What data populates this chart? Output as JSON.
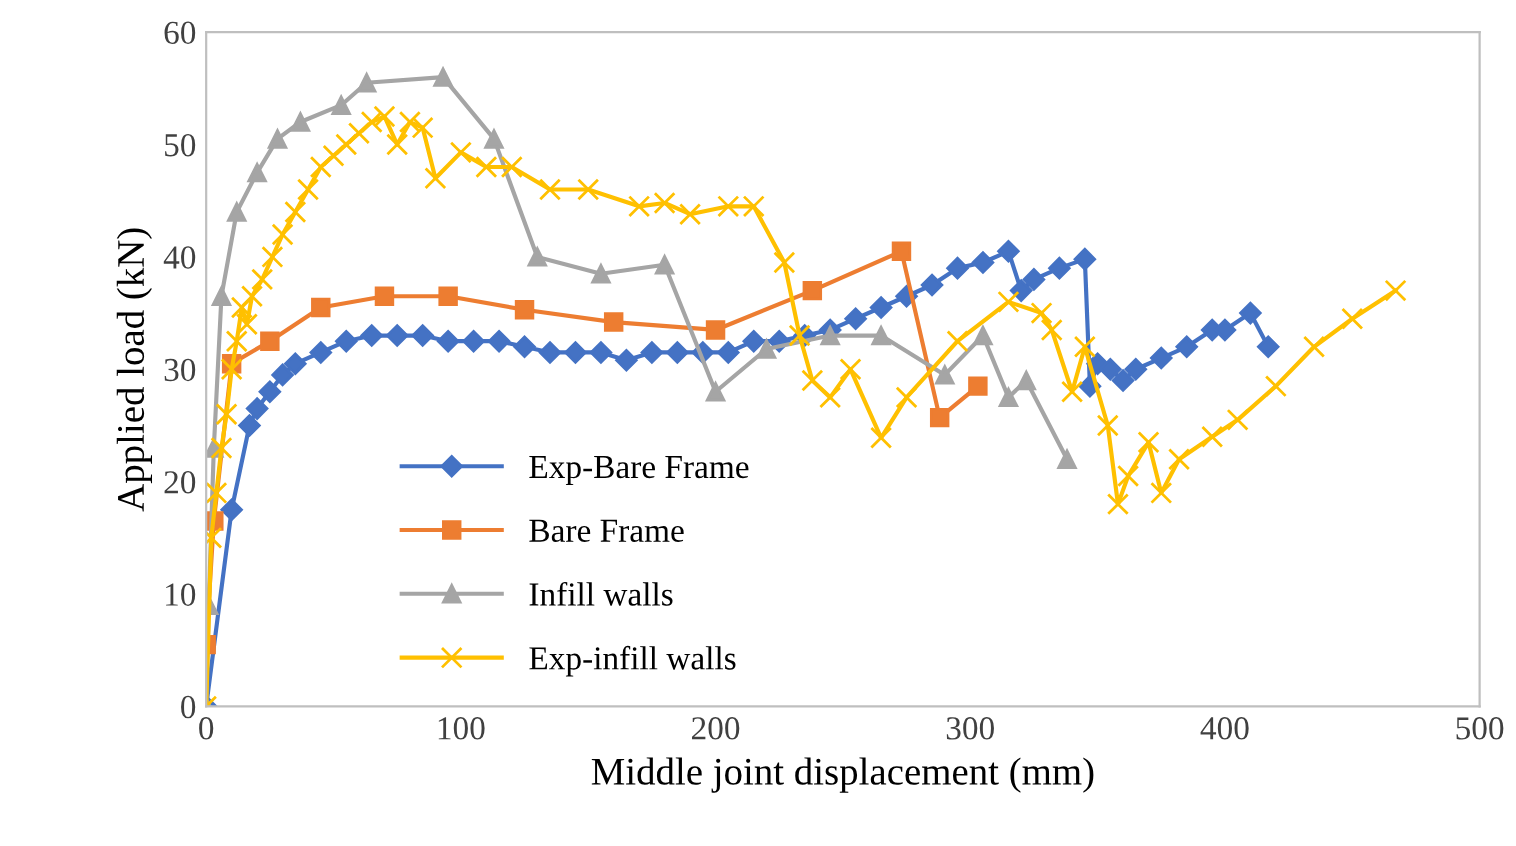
{
  "chart_data": {
    "type": "line",
    "xlabel": "Middle joint displacement (mm)",
    "ylabel": "Applied load (kN)",
    "xlim": [
      0,
      500
    ],
    "ylim": [
      0,
      60
    ],
    "xticks": [
      0,
      100,
      200,
      300,
      400,
      500
    ],
    "yticks": [
      0,
      10,
      20,
      30,
      40,
      50,
      60
    ],
    "grid": false,
    "legend": "bottom left",
    "series": [
      {
        "name": "Exp-Bare Frame",
        "color": "#4472c4",
        "marker": "diamond",
        "x": [
          0,
          10,
          17,
          20,
          25,
          30,
          35,
          45,
          55,
          65,
          75,
          85,
          95,
          105,
          115,
          125,
          135,
          145,
          155,
          165,
          175,
          185,
          195,
          205,
          215,
          225,
          235,
          245,
          255,
          265,
          275,
          285,
          295,
          305,
          315,
          320,
          325,
          335,
          345,
          347,
          350,
          355,
          360,
          365,
          375,
          385,
          395,
          400,
          410,
          417
        ],
        "values": [
          0,
          17.5,
          25,
          26.5,
          28,
          29.5,
          30.5,
          31.5,
          32.5,
          33,
          33,
          33,
          32.5,
          32.5,
          32.5,
          32,
          31.5,
          31.5,
          31.5,
          30.8,
          31.5,
          31.5,
          31.5,
          31.5,
          32.5,
          32.5,
          33,
          33.5,
          34.5,
          35.5,
          36.5,
          37.5,
          39,
          39.5,
          40.5,
          37,
          38,
          39,
          39.8,
          28.5,
          30.5,
          30,
          29,
          30,
          31,
          32,
          33.5,
          33.5,
          35,
          32
        ]
      },
      {
        "name": "Bare Frame",
        "color": "#ed7d31",
        "marker": "square",
        "x": [
          0,
          3,
          10,
          25,
          45,
          70,
          95,
          125,
          160,
          200,
          238,
          273,
          288,
          303
        ],
        "values": [
          5.5,
          16.5,
          30.5,
          32.5,
          35.5,
          36.5,
          36.5,
          35.3,
          34.2,
          33.5,
          37,
          40.5,
          25.7,
          28.5
        ]
      },
      {
        "name": "Infill walls",
        "color": "#a5a5a5",
        "marker": "triangle",
        "x": [
          0,
          1,
          3,
          6,
          12,
          20,
          28,
          37,
          53,
          63,
          93,
          113,
          130,
          155,
          180,
          200,
          220,
          245,
          265,
          290,
          305,
          315,
          322,
          338
        ],
        "values": [
          0,
          9,
          23,
          36.5,
          44,
          47.5,
          50.5,
          52,
          53.5,
          55.5,
          56,
          50.5,
          40,
          38.5,
          39.3,
          28,
          31.8,
          33,
          33,
          29.5,
          33,
          27.5,
          29,
          22
        ]
      },
      {
        "name": "Exp-infill walls",
        "color": "#ffc000",
        "marker": "cross",
        "x": [
          0,
          2,
          4,
          6,
          8,
          10,
          12,
          14,
          16,
          18,
          22,
          26,
          30,
          35,
          40,
          45,
          50,
          55,
          60,
          65,
          70,
          75,
          80,
          85,
          90,
          100,
          110,
          120,
          135,
          150,
          170,
          180,
          190,
          205,
          215,
          227,
          233,
          238,
          245,
          253,
          265,
          275,
          295,
          315,
          328,
          332,
          340,
          345,
          354,
          358,
          362,
          370,
          375,
          382,
          395,
          405,
          420,
          435,
          450,
          467
        ],
        "values": [
          0,
          15,
          19,
          23,
          26,
          30,
          32.5,
          35.5,
          34,
          36.5,
          38,
          40,
          42,
          44,
          46,
          48,
          49,
          50,
          51,
          52,
          52.5,
          50,
          52,
          51.5,
          47,
          49.3,
          48,
          48,
          46,
          46,
          44.5,
          44.8,
          43.8,
          44.5,
          44.5,
          39.5,
          33,
          29,
          27.5,
          30,
          23.9,
          27.5,
          32.5,
          36,
          35,
          33.5,
          28,
          32,
          25,
          18,
          20.5,
          23.5,
          19,
          22,
          24,
          25.5,
          28.5,
          32,
          34.5,
          37
        ]
      }
    ]
  }
}
